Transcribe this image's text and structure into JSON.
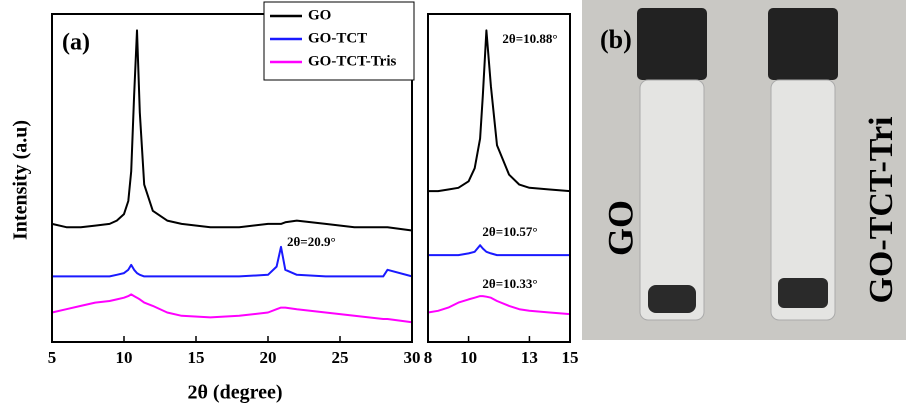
{
  "chart_data": [
    {
      "type": "line",
      "panel_label": "(a)",
      "xlabel": "2θ (degree)",
      "ylabel": "Intensity (a.u)",
      "xlim": [
        5,
        30
      ],
      "xticks": [
        5,
        10,
        15,
        20,
        25,
        30
      ],
      "ylim": [
        0,
        100
      ],
      "legend": "upper right",
      "annotations": [
        "2θ=20.9°"
      ],
      "x": [
        5,
        6,
        7,
        8,
        9,
        9.5,
        10,
        10.3,
        10.5,
        10.7,
        10.9,
        11.1,
        11.4,
        12,
        13,
        14,
        16,
        18,
        20,
        20.6,
        20.9,
        21.2,
        22,
        24,
        26,
        28,
        28.3,
        30
      ],
      "series": [
        {
          "name": "GO",
          "color": "#000000",
          "values": [
            36,
            35,
            35,
            35.5,
            36,
            37,
            39,
            43,
            52,
            75,
            95,
            70,
            48,
            40,
            37,
            36,
            35,
            35,
            36,
            36,
            36,
            36.5,
            37,
            36,
            35,
            35,
            35,
            34
          ]
        },
        {
          "name": "GO-TCT",
          "color": "#1a1aff",
          "values": [
            20,
            20,
            20,
            20,
            20,
            20.5,
            21,
            22,
            23.5,
            22,
            21,
            20.5,
            20,
            20,
            20,
            20,
            20,
            20,
            20.5,
            23,
            29,
            22,
            20.5,
            20,
            20,
            20,
            22,
            20
          ]
        },
        {
          "name": "GO-TCT-Tris",
          "color": "#ff00ff",
          "values": [
            9,
            10,
            11,
            12,
            12.5,
            13,
            13.5,
            14,
            14.5,
            14,
            13.5,
            13,
            12,
            11,
            9,
            8,
            7.5,
            8,
            9,
            10,
            10.5,
            10.5,
            10,
            9,
            8,
            7,
            7,
            6
          ]
        }
      ]
    },
    {
      "type": "line",
      "xlim": [
        8,
        15
      ],
      "xticks": [
        8,
        10,
        13,
        15
      ],
      "ylim": [
        0,
        100
      ],
      "annotations": [
        "2θ=10.88°",
        "2θ=10.57°",
        "2θ=10.33°"
      ],
      "x": [
        8,
        8.5,
        9,
        9.5,
        10,
        10.3,
        10.57,
        10.7,
        10.88,
        11.1,
        11.4,
        12,
        12.5,
        13,
        14,
        15
      ],
      "series": [
        {
          "color": "#000000",
          "values": [
            46,
            46,
            46.5,
            47,
            49,
            53,
            62,
            75,
            95,
            78,
            60,
            51,
            48,
            47,
            46.5,
            46
          ]
        },
        {
          "color": "#1a1aff",
          "values": [
            26.5,
            26.5,
            26.5,
            26.5,
            27,
            27.5,
            29.5,
            28.5,
            27.5,
            27,
            26.5,
            26.5,
            26.5,
            26.5,
            26.5,
            26.5
          ]
        },
        {
          "color": "#ff00ff",
          "values": [
            9,
            9.5,
            10.5,
            12,
            13,
            13.5,
            14,
            14,
            13.8,
            13.5,
            12.5,
            11,
            10,
            9.5,
            9,
            8.5
          ]
        }
      ]
    }
  ],
  "photo": {
    "panel_label": "(b)",
    "labels": [
      "GO",
      "GO-TCT-Tri"
    ]
  }
}
